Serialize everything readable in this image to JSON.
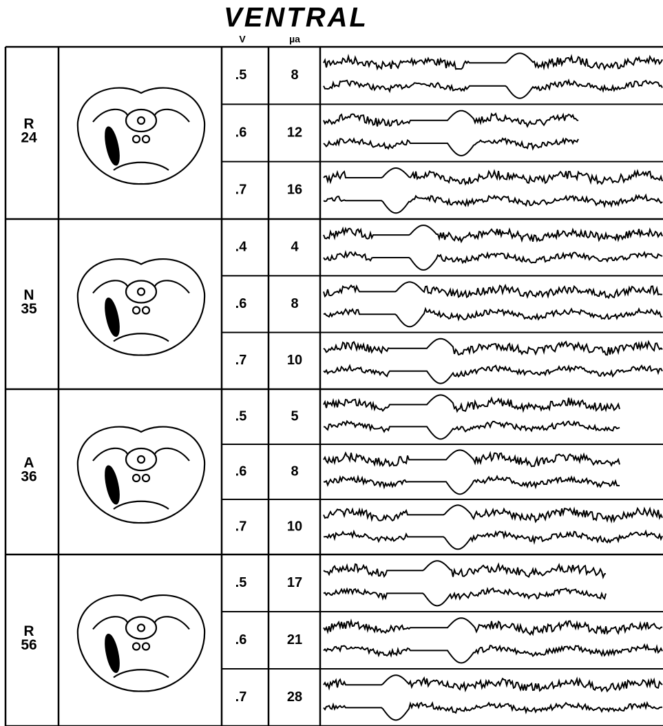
{
  "title": "VENTRAL",
  "columns": {
    "voltage": "V",
    "current": "µa"
  },
  "groups": [
    {
      "letter": "R",
      "number": "24",
      "rows": [
        {
          "voltage": ".5",
          "current": "8"
        },
        {
          "voltage": ".6",
          "current": "12"
        },
        {
          "voltage": ".7",
          "current": "16"
        }
      ]
    },
    {
      "letter": "N",
      "number": "35",
      "rows": [
        {
          "voltage": ".4",
          "current": "4"
        },
        {
          "voltage": ".6",
          "current": "8"
        },
        {
          "voltage": ".7",
          "current": "10"
        }
      ]
    },
    {
      "letter": "A",
      "number": "36",
      "rows": [
        {
          "voltage": ".5",
          "current": "5"
        },
        {
          "voltage": ".6",
          "current": "8"
        },
        {
          "voltage": ".7",
          "current": "10"
        }
      ]
    },
    {
      "letter": "R",
      "number": "56",
      "rows": [
        {
          "voltage": ".5",
          "current": "17"
        },
        {
          "voltage": ".6",
          "current": "21"
        },
        {
          "voltage": ".7",
          "current": "28"
        }
      ]
    }
  ]
}
